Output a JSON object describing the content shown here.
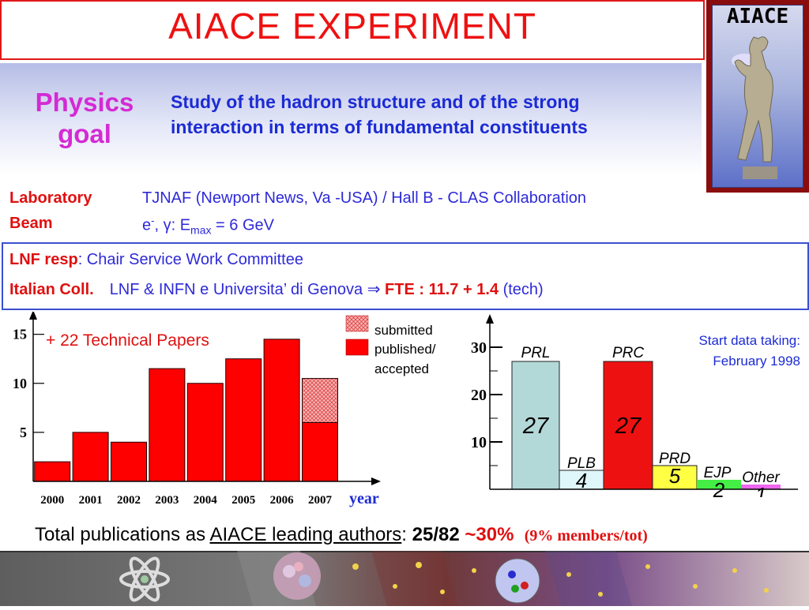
{
  "header": {
    "title": "AIACE EXPERIMENT",
    "logo_label": "AIACE"
  },
  "physics_goal": {
    "label_line1": "Physics",
    "label_line2": "goal",
    "text_line1": "Study of the hadron structure and of the strong",
    "text_line2": "interaction in terms of fundamental constituents"
  },
  "lab": {
    "laboratory_key": "Laboratory",
    "laboratory_val": "TJNAF (Newport News, Va -USA) / Hall B - CLAS Collaboration",
    "beam_key": "Beam",
    "beam_particle": "e",
    "beam_sup": "-",
    "beam_gamma": ", γ: E",
    "beam_sub": "max",
    "beam_energy": " = 6 GeV"
  },
  "lnf": {
    "resp_key": "LNF resp",
    "resp_val": ": Chair Service Work Committee",
    "coll_key": "Italian Coll.",
    "coll_val": "LNF & INFN e Universita’ di Genova ⇒ ",
    "fte": "FTE : 11.7 + 1.4",
    "tech": " (tech)"
  },
  "chart_data": [
    {
      "type": "bar",
      "categories": [
        "2000",
        "2001",
        "2002",
        "2003",
        "2004",
        "2005",
        "2006",
        "2007"
      ],
      "series": [
        {
          "name": "published/ accepted",
          "values": [
            2,
            5,
            4,
            11.5,
            10,
            12.5,
            14.5,
            6
          ],
          "color": "#ff0000"
        },
        {
          "name": "submitted",
          "values": [
            0,
            0,
            0,
            0,
            0,
            0,
            0,
            4.5
          ],
          "color": "#f4a0a0"
        }
      ],
      "stacked": true,
      "ylim": [
        0,
        16.5
      ],
      "yticks": [
        5,
        10,
        15
      ],
      "xlabel": "year",
      "ylabel": "",
      "annotation": "+ 22 Technical Papers",
      "legend": [
        {
          "label": "submitted",
          "pattern": "hatched"
        },
        {
          "label": "published/ accepted",
          "pattern": "solid"
        }
      ],
      "legend_position": "top-right"
    },
    {
      "type": "bar",
      "categories": [
        "PRL",
        "PLB",
        "PRC",
        "PRD",
        "EJP",
        "Other"
      ],
      "values": [
        27,
        4,
        27,
        5,
        2,
        1
      ],
      "colors": [
        "#b3d8d8",
        "#dff6fa",
        "#ee1111",
        "#ffff44",
        "#44ee44",
        "#ee66ee"
      ],
      "ylim": [
        0,
        35
      ],
      "yticks": [
        10,
        20,
        30
      ],
      "annotation_line1": "Start data taking:",
      "annotation_line2": "February 1998"
    }
  ],
  "summary": {
    "prefix": "Total publications as ",
    "underlined": "AIACE leading authors",
    "colon": ": ",
    "count": "25/82",
    "percent": " ~30%",
    "note": "(9% members/tot)"
  },
  "colors": {
    "title": "#ee1111",
    "accent_blue": "#1c2bd4",
    "goal_magenta": "#d42ad4",
    "key_red": "#e01010"
  }
}
